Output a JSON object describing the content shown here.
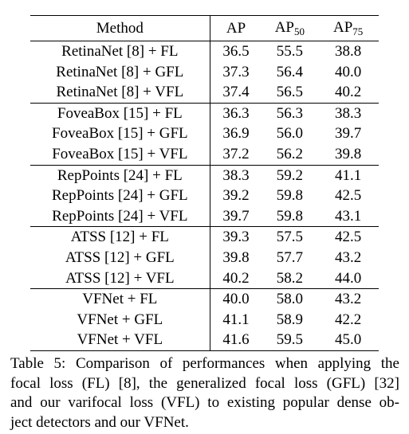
{
  "table": {
    "header": {
      "method": "Method",
      "ap": "AP",
      "ap50_base": "AP",
      "ap50_sub": "50",
      "ap75_base": "AP",
      "ap75_sub": "75"
    },
    "groups": [
      {
        "rows": [
          {
            "method": "RetinaNet [8] + FL",
            "ap": "36.5",
            "ap50": "55.5",
            "ap75": "38.8",
            "bold_ap": false
          },
          {
            "method": "RetinaNet [8] + GFL",
            "ap": "37.3",
            "ap50": "56.4",
            "ap75": "40.0",
            "bold_ap": false
          },
          {
            "method": "RetinaNet [8] + VFL",
            "ap": "37.4",
            "ap50": "56.5",
            "ap75": "40.2",
            "bold_ap": true
          }
        ]
      },
      {
        "rows": [
          {
            "method": "FoveaBox [15] + FL",
            "ap": "36.3",
            "ap50": "56.3",
            "ap75": "38.3",
            "bold_ap": false
          },
          {
            "method": "FoveaBox [15] + GFL",
            "ap": "36.9",
            "ap50": "56.0",
            "ap75": "39.7",
            "bold_ap": false
          },
          {
            "method": "FoveaBox [15] + VFL",
            "ap": "37.2",
            "ap50": "56.2",
            "ap75": "39.8",
            "bold_ap": true
          }
        ]
      },
      {
        "rows": [
          {
            "method": "RepPoints [24] + FL",
            "ap": "38.3",
            "ap50": "59.2",
            "ap75": "41.1",
            "bold_ap": false
          },
          {
            "method": "RepPoints [24] + GFL",
            "ap": "39.2",
            "ap50": "59.8",
            "ap75": "42.5",
            "bold_ap": false
          },
          {
            "method": "RepPoints [24] + VFL",
            "ap": "39.7",
            "ap50": "59.8",
            "ap75": "43.1",
            "bold_ap": true
          }
        ]
      },
      {
        "rows": [
          {
            "method": "ATSS [12] + FL",
            "ap": "39.3",
            "ap50": "57.5",
            "ap75": "42.5",
            "bold_ap": false
          },
          {
            "method": "ATSS [12] + GFL",
            "ap": "39.8",
            "ap50": "57.7",
            "ap75": "43.2",
            "bold_ap": false
          },
          {
            "method": "ATSS [12] + VFL",
            "ap": "40.2",
            "ap50": "58.2",
            "ap75": "44.0",
            "bold_ap": true
          }
        ]
      },
      {
        "rows": [
          {
            "method": "VFNet + FL",
            "ap": "40.0",
            "ap50": "58.0",
            "ap75": "43.2",
            "bold_ap": false
          },
          {
            "method": "VFNet + GFL",
            "ap": "41.1",
            "ap50": "58.9",
            "ap75": "42.2",
            "bold_ap": false
          },
          {
            "method": "VFNet + VFL",
            "ap": "41.6",
            "ap50": "59.5",
            "ap75": "45.0",
            "bold_ap": true
          }
        ]
      }
    ]
  },
  "caption": {
    "lines": [
      "Table 5: Comparison of performances when applying the",
      "focal loss (FL) [8], the generalized focal loss (GFL) [32]",
      "and our varifocal loss (VFL) to existing popular dense ob-",
      "ject detectors and our VFNet."
    ]
  }
}
